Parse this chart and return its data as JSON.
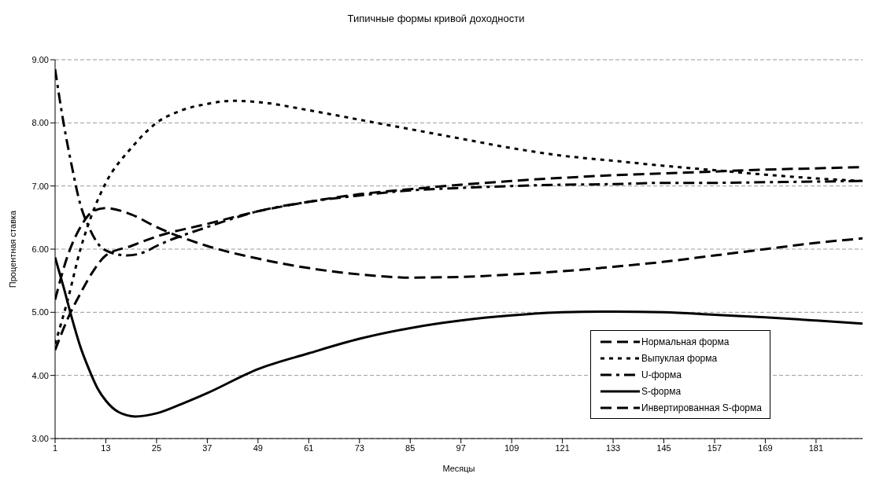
{
  "chart_data": {
    "type": "line",
    "title": "Типичные формы кривой доходности",
    "xlabel": "Месяцы",
    "ylabel": "Процентная ставка",
    "xlim": [
      1,
      192
    ],
    "xticks": [
      1,
      13,
      25,
      37,
      49,
      61,
      73,
      85,
      97,
      109,
      121,
      133,
      145,
      157,
      169,
      181
    ],
    "ylim": [
      3,
      9
    ],
    "yticks": [
      {
        "value": 3,
        "label": "3.00"
      },
      {
        "value": 4,
        "label": "4.00"
      },
      {
        "value": 5,
        "label": "5.00"
      },
      {
        "value": 6,
        "label": "6.00"
      },
      {
        "value": 7,
        "label": "7.00"
      },
      {
        "value": 8,
        "label": "8.00"
      },
      {
        "value": 9,
        "label": "9.00"
      }
    ],
    "grid": "y",
    "legend": "bottom right",
    "marker": "none",
    "series": [
      {
        "name": "Нормальная форма",
        "color": "#000000",
        "line_style": "dashed",
        "x": [
          1,
          4,
          7,
          10,
          13,
          19,
          25,
          37,
          49,
          61,
          73,
          85,
          97,
          109,
          121,
          133,
          145,
          157,
          169,
          181,
          192
        ],
        "values": [
          4.4,
          4.9,
          5.3,
          5.65,
          5.9,
          6.05,
          6.2,
          6.4,
          6.6,
          6.75,
          6.87,
          6.95,
          7.02,
          7.08,
          7.13,
          7.17,
          7.2,
          7.23,
          7.26,
          7.28,
          7.3
        ]
      },
      {
        "name": "Выпуклая форма",
        "color": "#000000",
        "line_style": "dotted",
        "x": [
          1,
          4,
          7,
          10,
          13,
          19,
          25,
          31,
          37,
          43,
          49,
          61,
          73,
          85,
          97,
          109,
          121,
          133,
          145,
          157,
          169,
          181,
          192
        ],
        "values": [
          4.5,
          5.2,
          6.0,
          6.6,
          7.05,
          7.6,
          8.0,
          8.2,
          8.3,
          8.35,
          8.33,
          8.2,
          8.05,
          7.9,
          7.75,
          7.6,
          7.48,
          7.4,
          7.32,
          7.25,
          7.18,
          7.12,
          7.08
        ]
      },
      {
        "name": "U-форма",
        "color": "#000000",
        "line_style": "dashdot",
        "x": [
          1,
          3,
          5,
          7,
          9,
          11,
          14,
          18,
          22,
          25,
          37,
          49,
          61,
          73,
          85,
          97,
          109,
          121,
          133,
          145,
          157,
          169,
          181,
          192
        ],
        "values": [
          8.85,
          8.0,
          7.3,
          6.7,
          6.35,
          6.1,
          5.95,
          5.9,
          5.95,
          6.05,
          6.35,
          6.6,
          6.75,
          6.85,
          6.93,
          6.97,
          7.0,
          7.02,
          7.03,
          7.05,
          7.05,
          7.06,
          7.07,
          7.08
        ]
      },
      {
        "name": "S-форма",
        "color": "#000000",
        "line_style": "solid",
        "x": [
          1,
          3,
          5,
          7,
          9,
          11,
          13,
          16,
          20,
          25,
          31,
          37,
          49,
          61,
          73,
          85,
          97,
          109,
          121,
          133,
          145,
          157,
          169,
          181,
          192
        ],
        "values": [
          5.87,
          5.4,
          4.9,
          4.45,
          4.1,
          3.8,
          3.6,
          3.42,
          3.35,
          3.4,
          3.55,
          3.72,
          4.1,
          4.35,
          4.58,
          4.75,
          4.87,
          4.95,
          5.0,
          5.01,
          5.0,
          4.96,
          4.92,
          4.87,
          4.82
        ]
      },
      {
        "name": "Инвертированная S-форма",
        "color": "#000000",
        "line_style": "dashed",
        "x": [
          1,
          4,
          7,
          10,
          13,
          19,
          25,
          37,
          49,
          61,
          73,
          85,
          97,
          109,
          121,
          133,
          145,
          157,
          169,
          181,
          192
        ],
        "values": [
          5.2,
          5.9,
          6.35,
          6.6,
          6.65,
          6.55,
          6.35,
          6.05,
          5.85,
          5.7,
          5.6,
          5.55,
          5.56,
          5.6,
          5.65,
          5.72,
          5.8,
          5.9,
          6.0,
          6.1,
          6.17
        ]
      }
    ]
  }
}
